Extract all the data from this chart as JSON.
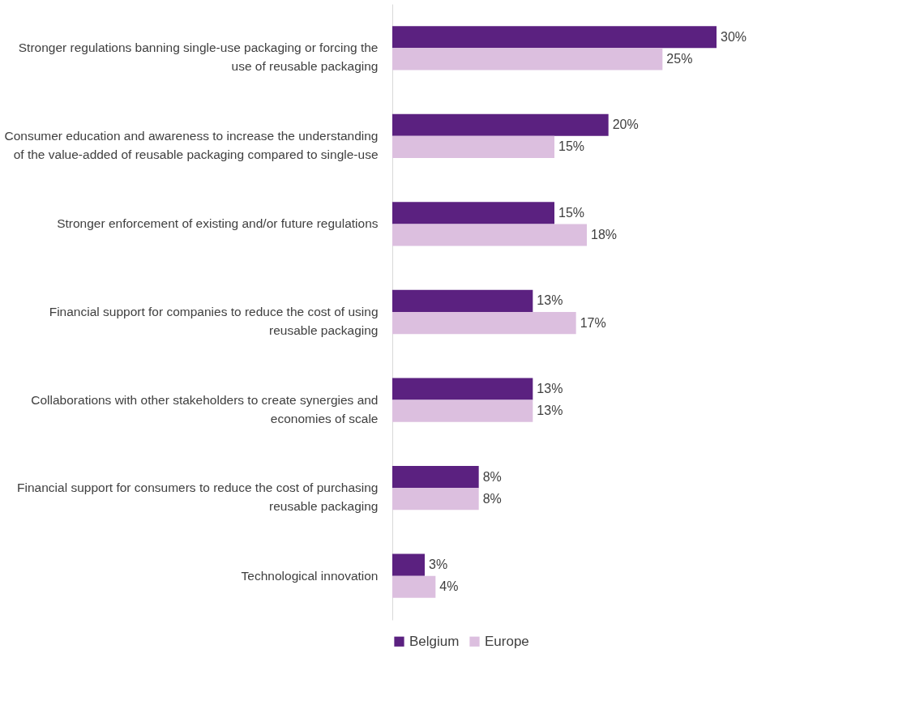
{
  "chart_data": {
    "type": "bar",
    "orientation": "horizontal",
    "categories": [
      "Stronger regulations banning single-use packaging or forcing the use of reusable packaging",
      "Consumer education and awareness to increase the understanding of the value-added of reusable packaging compared to single-use",
      "Stronger enforcement of existing and/or future regulations",
      "Financial support for companies to reduce the cost of using reusable packaging",
      "Collaborations with other stakeholders to create synergies and economies of scale",
      "Financial support for consumers to reduce the cost of purchasing reusable packaging",
      "Technological innovation"
    ],
    "series": [
      {
        "name": "Belgium",
        "color": "#5b2180",
        "values": [
          30,
          20,
          15,
          13,
          13,
          8,
          3
        ],
        "value_labels": [
          "30%",
          "20%",
          "15%",
          "13%",
          "13%",
          "8%",
          "3%"
        ]
      },
      {
        "name": "Europe",
        "color": "#dcbfdf",
        "values": [
          25,
          15,
          18,
          17,
          13,
          8,
          4
        ],
        "value_labels": [
          "25%",
          "15%",
          "18%",
          "17%",
          "13%",
          "8%",
          "4%"
        ]
      }
    ],
    "legend": "bottom",
    "grid": false
  }
}
